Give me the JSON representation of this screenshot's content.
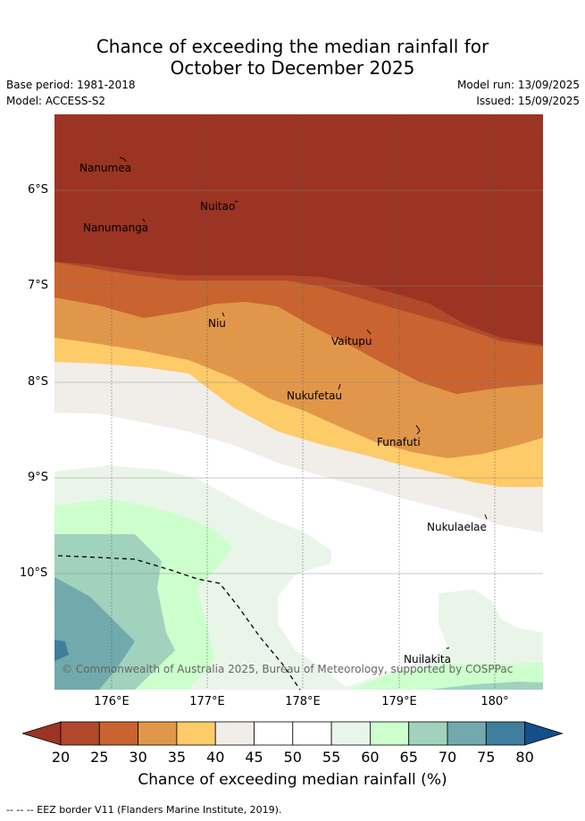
{
  "title_line1": "Chance of exceeding the median rainfall for",
  "title_line2": "October to December 2025",
  "base_period": "Base period: 1981-2018",
  "model": "Model: ACCESS-S2",
  "model_run": "Model run: 13/09/2025",
  "issued": "Issued: 15/09/2025",
  "places": [
    "Nanumea",
    "Nuitao",
    "Nanumanga",
    "Niu",
    "Vaitupu",
    "Nukufetau",
    "Funafuti",
    "Nukulaelae",
    "Nuilakita"
  ],
  "lat_labels": [
    "6°S",
    "7°S",
    "8°S",
    "9°S",
    "10°S"
  ],
  "lon_labels": [
    "176°E",
    "177°E",
    "178°E",
    "179°E",
    "180°"
  ],
  "copyright": "© Commonwealth of Australia 2025, Bureau of Meteorology, supported by COSPPac",
  "colorbar": {
    "ticks": [
      "20",
      "25",
      "30",
      "35",
      "40",
      "45",
      "50",
      "55",
      "60",
      "65",
      "70",
      "75",
      "80"
    ],
    "colors": [
      "#b1492a",
      "#c9632f",
      "#e19749",
      "#fecb69",
      "#f1ede8",
      "#ffffff",
      "#ffffff",
      "#eaf5e9",
      "#ccffcc",
      "#a0d2be",
      "#72a9ac",
      "#3f7e9c"
    ],
    "under_color": "#9b3422",
    "over_color": "#124f8c",
    "label": "Chance of exceeding median rainfall (%)"
  },
  "footer": "-- -- -- EEZ border V11 (Flanders Marine Institute, 2019)."
}
